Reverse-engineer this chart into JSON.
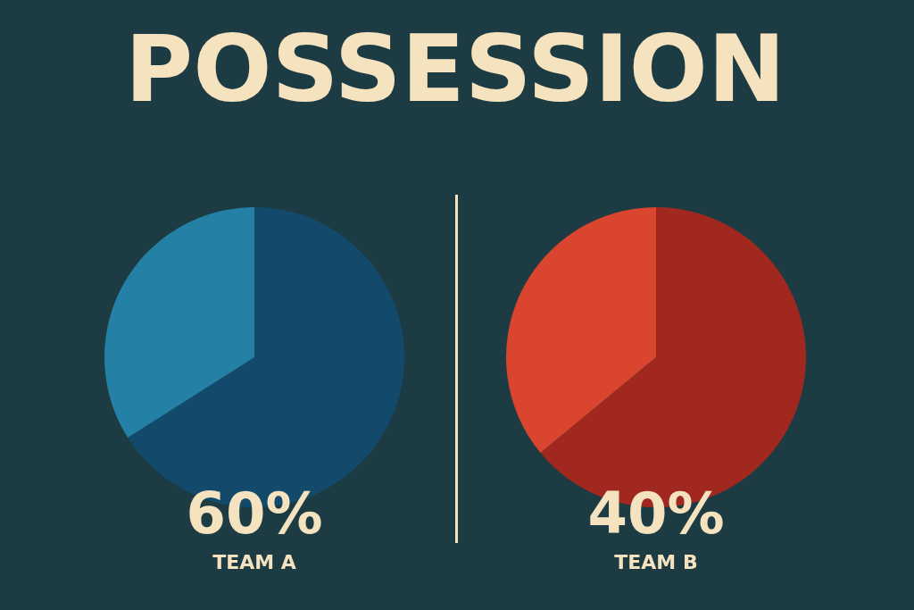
{
  "chart_data": [
    {
      "type": "pie",
      "title": "POSSESSION",
      "categories": [
        null,
        null
      ],
      "values": [
        66,
        34
      ],
      "colors": [
        "#134a6b",
        "#2580a6"
      ],
      "annotations": [
        "60%",
        "TEAM A"
      ]
    },
    {
      "type": "pie",
      "categories": [
        null,
        null
      ],
      "values": [
        64,
        36
      ],
      "colors": [
        "#a0281e",
        "#d9452e"
      ],
      "annotations": [
        "40%",
        "TEAM B"
      ]
    }
  ]
}
